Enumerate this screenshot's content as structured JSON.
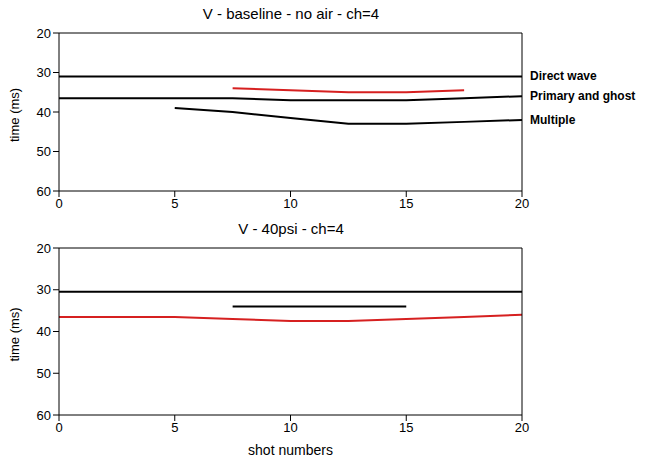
{
  "chart_data": [
    {
      "type": "line",
      "title": "V - baseline - no air - ch=4",
      "ylabel": "time (ms)",
      "x": [
        0,
        2.5,
        5,
        7.5,
        10,
        12.5,
        15,
        17.5,
        20
      ],
      "xlim": [
        0,
        20
      ],
      "xticks": [
        0,
        5,
        10,
        15,
        20
      ],
      "ylim": [
        20,
        60
      ],
      "yticks": [
        20,
        30,
        40,
        50,
        60
      ],
      "grid": false,
      "series": [
        {
          "name": "Direct wave",
          "color": "#000000",
          "values": [
            31,
            31,
            31,
            31,
            31,
            31,
            31,
            31,
            31
          ]
        },
        {
          "color": "#d62020",
          "values": [
            null,
            null,
            null,
            34,
            34.5,
            35,
            35,
            34.5,
            null
          ]
        },
        {
          "name": "Primary and ghost",
          "color": "#000000",
          "values": [
            36.5,
            36.5,
            36.5,
            36.5,
            37,
            37,
            37,
            36.5,
            36
          ]
        },
        {
          "name": "Multiple",
          "color": "#000000",
          "values": [
            null,
            null,
            39,
            40,
            41.5,
            43,
            43,
            42.5,
            42
          ]
        }
      ]
    },
    {
      "type": "line",
      "title": "V - 40psi - ch=4",
      "ylabel": "time (ms)",
      "xlabel": "shot numbers",
      "x": [
        0,
        2.5,
        5,
        7.5,
        10,
        12.5,
        15,
        17.5,
        20
      ],
      "xlim": [
        0,
        20
      ],
      "xticks": [
        0,
        5,
        10,
        15,
        20
      ],
      "ylim": [
        20,
        60
      ],
      "yticks": [
        20,
        30,
        40,
        50,
        60
      ],
      "grid": false,
      "series": [
        {
          "color": "#000000",
          "values": [
            30.5,
            30.5,
            30.5,
            30.5,
            30.5,
            30.5,
            30.5,
            30.5,
            30.5
          ]
        },
        {
          "color": "#000000",
          "values": [
            null,
            null,
            null,
            34,
            34,
            34,
            34,
            null,
            null
          ]
        },
        {
          "color": "#d62020",
          "values": [
            36.5,
            36.5,
            36.5,
            37,
            37.5,
            37.5,
            37,
            36.5,
            36
          ]
        }
      ]
    }
  ]
}
